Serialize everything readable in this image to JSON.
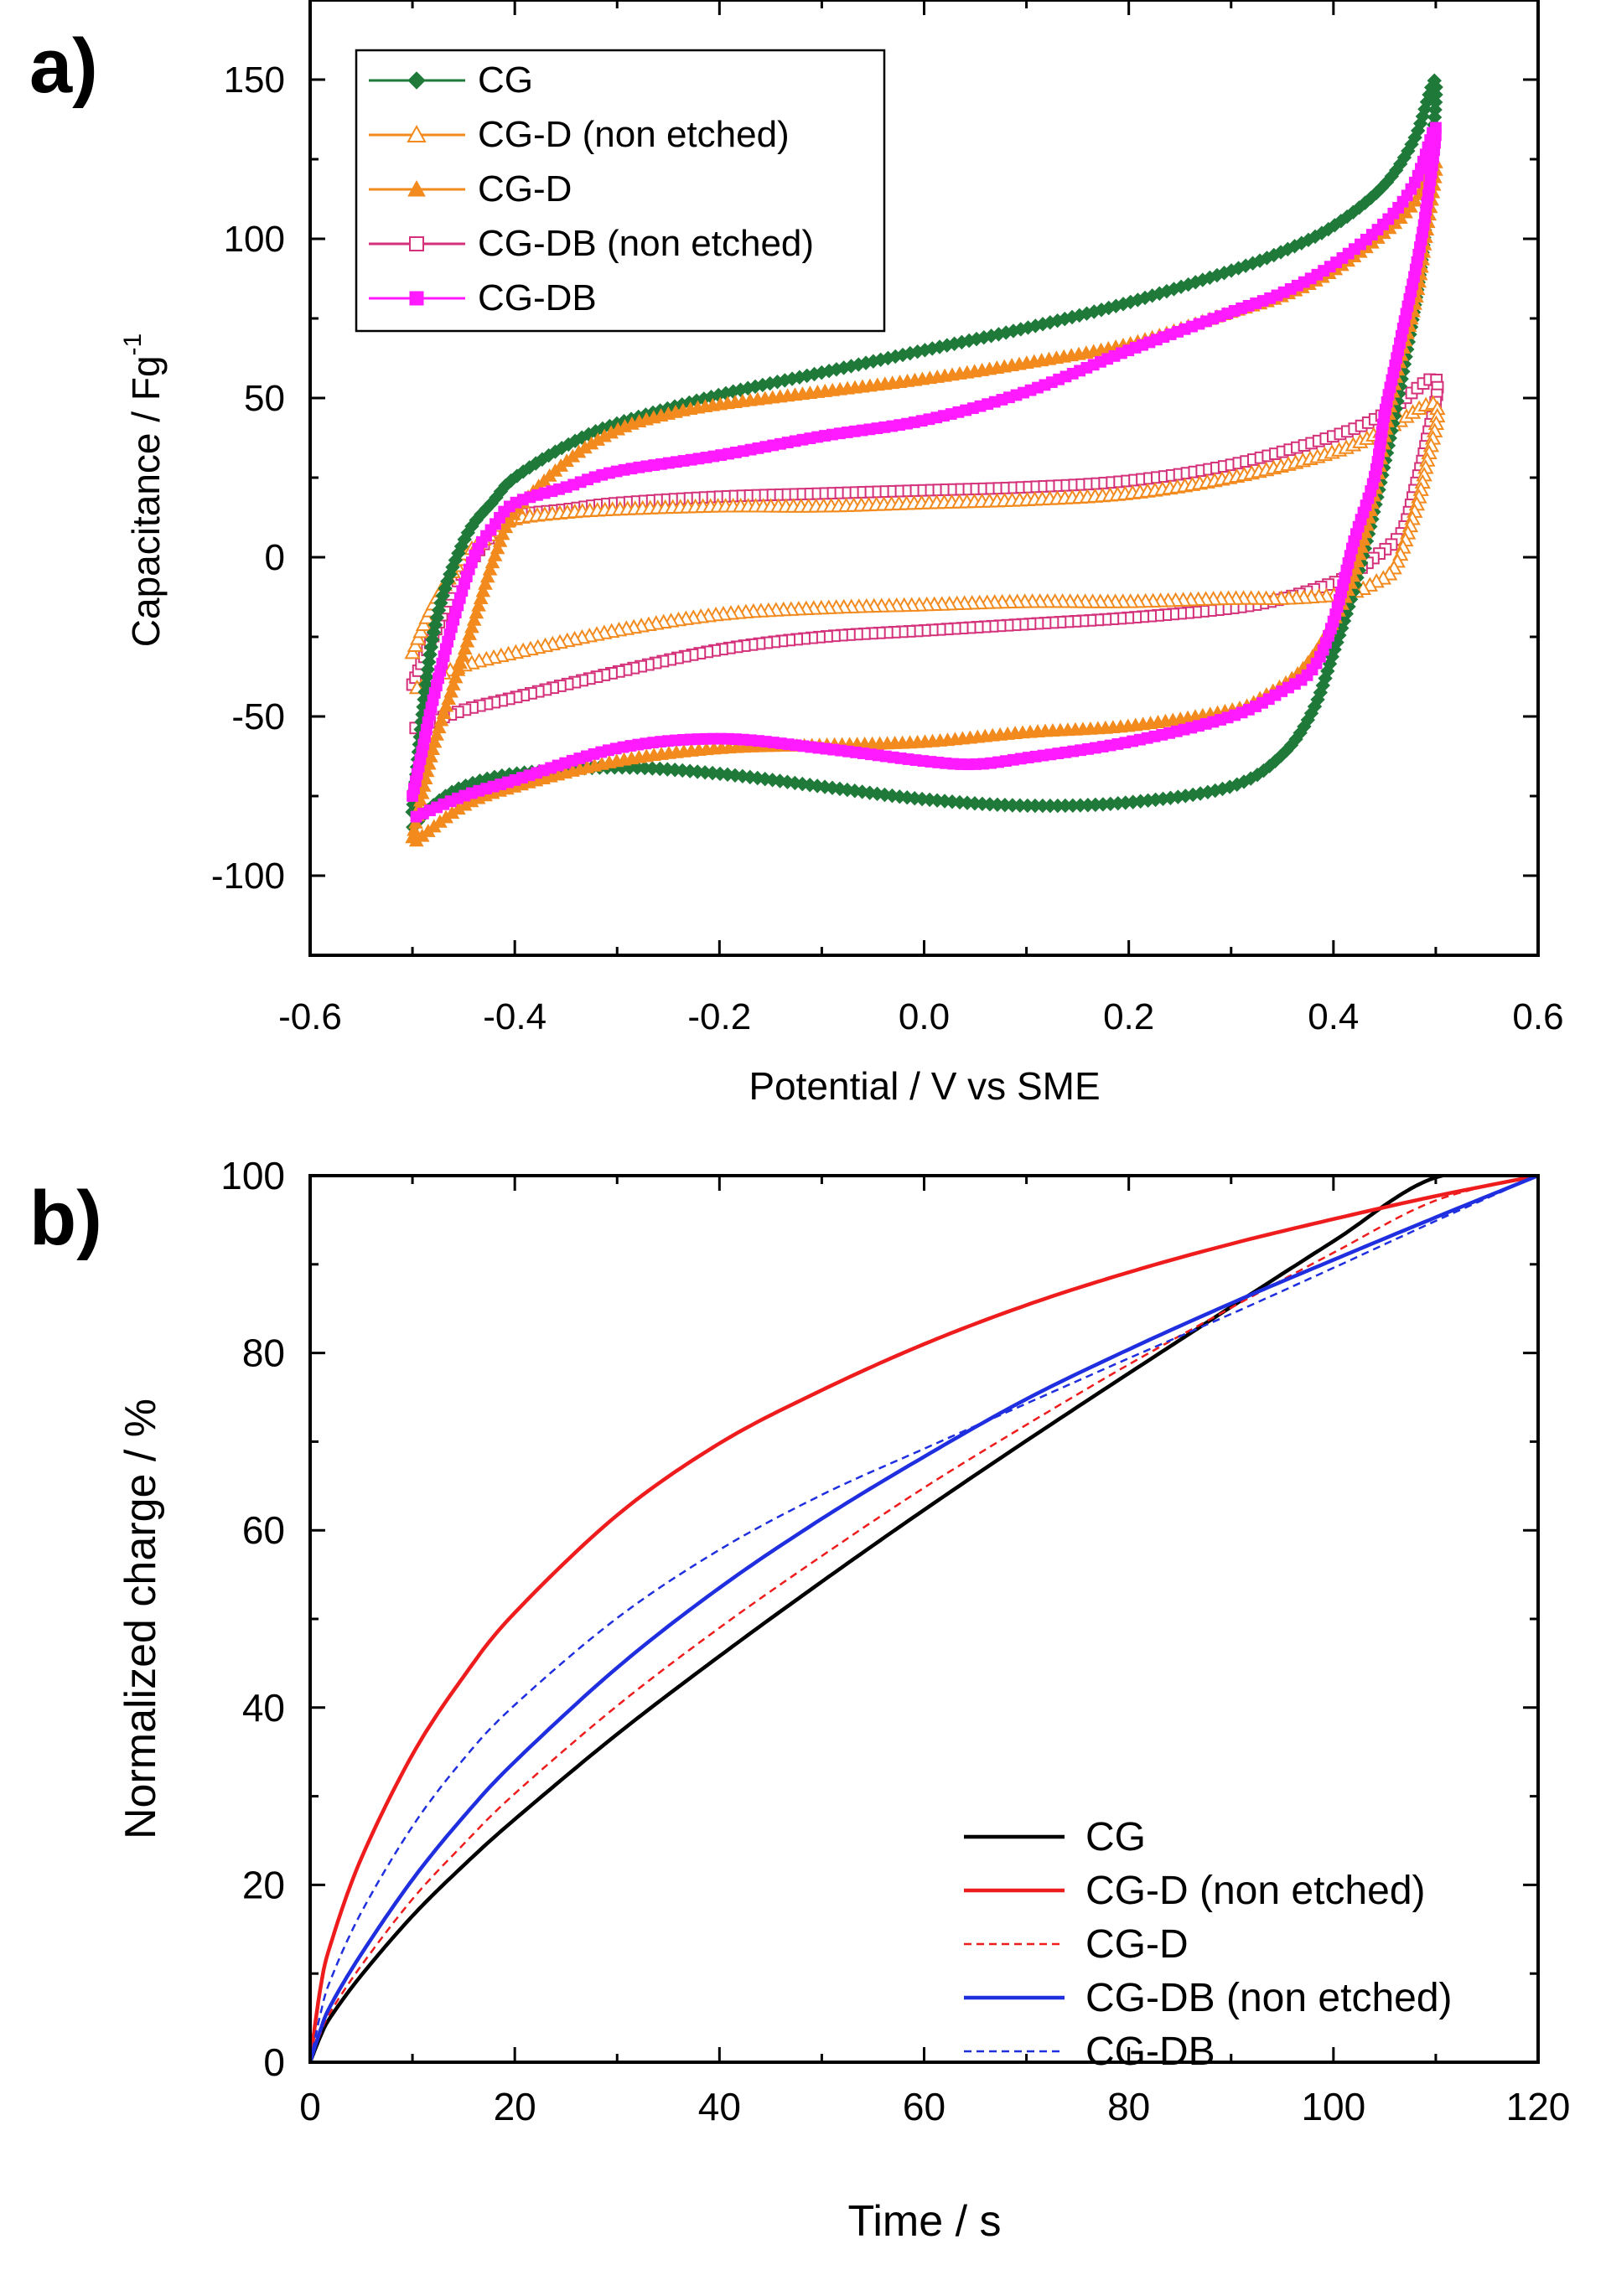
{
  "colors": {
    "CG_a": "#1f7a3a",
    "CGD_a": "#f28a1e",
    "CGDB_ne_a": "#d4317a",
    "CGDB_a": "#ff1aff",
    "CG_b": "#000000",
    "CGD_ne_b": "#ee1c1c",
    "CGD_b": "#ee1c1c",
    "CGDB_ne_b": "#1f2fe0",
    "CGDB_b": "#1f2fe0"
  },
  "chart_data": [
    {
      "type": "line",
      "panel_label": "a)",
      "title": "",
      "xlabel": "Potential / V vs SME",
      "ylabel_main": "Capacitance / Fg",
      "ylabel_sup": "-1",
      "xlim": [
        -0.6,
        0.6
      ],
      "ylim": [
        -125,
        175
      ],
      "xticks": [
        -0.6,
        -0.4,
        -0.2,
        0.0,
        0.2,
        0.4,
        0.6
      ],
      "xtick_labels": [
        "-0.6",
        "-0.4",
        "-0.2",
        "0.0",
        "0.2",
        "0.4",
        "0.6"
      ],
      "yticks": [
        -100,
        -50,
        0,
        50,
        100,
        150
      ],
      "ytick_labels": [
        "-100",
        "-50",
        "0",
        "50",
        "100",
        "150"
      ],
      "legend_position": "top-left",
      "series": [
        {
          "name": "CG",
          "color": "#1f7a3a",
          "marker": "diamond",
          "filled": true,
          "upper": [
            [
              -0.5,
              -80
            ],
            [
              -0.48,
              -25
            ],
            [
              -0.45,
              5
            ],
            [
              -0.42,
              18
            ],
            [
              -0.4,
              25
            ],
            [
              -0.35,
              35
            ],
            [
              -0.3,
              42
            ],
            [
              -0.2,
              51
            ],
            [
              -0.1,
              58
            ],
            [
              0.0,
              65
            ],
            [
              0.1,
              72
            ],
            [
              0.2,
              80
            ],
            [
              0.3,
              90
            ],
            [
              0.35,
              96
            ],
            [
              0.4,
              104
            ],
            [
              0.45,
              117
            ],
            [
              0.48,
              132
            ],
            [
              0.5,
              149
            ]
          ],
          "lower": [
            [
              0.5,
              128
            ],
            [
              0.49,
              105
            ],
            [
              0.48,
              80
            ],
            [
              0.46,
              45
            ],
            [
              0.44,
              15
            ],
            [
              0.42,
              -10
            ],
            [
              0.4,
              -30
            ],
            [
              0.38,
              -48
            ],
            [
              0.35,
              -62
            ],
            [
              0.3,
              -72
            ],
            [
              0.2,
              -77
            ],
            [
              0.1,
              -78
            ],
            [
              0.0,
              -76
            ],
            [
              -0.1,
              -72
            ],
            [
              -0.2,
              -68
            ],
            [
              -0.3,
              -66
            ],
            [
              -0.4,
              -68
            ],
            [
              -0.45,
              -72
            ],
            [
              -0.48,
              -78
            ],
            [
              -0.5,
              -85
            ]
          ]
        },
        {
          "name": "CG-D (non etched)",
          "color": "#f28a1e",
          "marker": "triangle",
          "filled": false,
          "upper": [
            [
              -0.5,
              -30
            ],
            [
              -0.48,
              -15
            ],
            [
              -0.45,
              0
            ],
            [
              -0.42,
              8
            ],
            [
              -0.4,
              12
            ],
            [
              -0.35,
              14
            ],
            [
              -0.3,
              15
            ],
            [
              -0.2,
              16
            ],
            [
              -0.1,
              16
            ],
            [
              0.0,
              17
            ],
            [
              0.1,
              18
            ],
            [
              0.2,
              20
            ],
            [
              0.3,
              25
            ],
            [
              0.4,
              33
            ],
            [
              0.45,
              40
            ],
            [
              0.5,
              48
            ]
          ],
          "lower": [
            [
              0.5,
              40
            ],
            [
              0.49,
              28
            ],
            [
              0.48,
              15
            ],
            [
              0.46,
              -3
            ],
            [
              0.44,
              -8
            ],
            [
              0.42,
              -11
            ],
            [
              0.4,
              -12
            ],
            [
              0.35,
              -13
            ],
            [
              0.3,
              -13
            ],
            [
              0.2,
              -14
            ],
            [
              0.1,
              -14
            ],
            [
              0.0,
              -15
            ],
            [
              -0.1,
              -16
            ],
            [
              -0.2,
              -18
            ],
            [
              -0.3,
              -23
            ],
            [
              -0.4,
              -30
            ],
            [
              -0.45,
              -34
            ],
            [
              -0.48,
              -38
            ],
            [
              -0.5,
              -42
            ]
          ]
        },
        {
          "name": "CG-D",
          "color": "#f28a1e",
          "marker": "triangle",
          "filled": true,
          "upper": [
            [
              -0.5,
              -88
            ],
            [
              -0.48,
              -60
            ],
            [
              -0.46,
              -40
            ],
            [
              -0.44,
              -20
            ],
            [
              -0.42,
              0
            ],
            [
              -0.4,
              14
            ],
            [
              -0.35,
              30
            ],
            [
              -0.3,
              40
            ],
            [
              -0.25,
              45
            ],
            [
              -0.2,
              48
            ],
            [
              -0.1,
              52
            ],
            [
              0.0,
              56
            ],
            [
              0.1,
              61
            ],
            [
              0.2,
              67
            ],
            [
              0.3,
              77
            ],
            [
              0.35,
              82
            ],
            [
              0.4,
              90
            ],
            [
              0.45,
              102
            ],
            [
              0.48,
              112
            ],
            [
              0.5,
              124
            ]
          ],
          "lower": [
            [
              0.5,
              115
            ],
            [
              0.49,
              100
            ],
            [
              0.48,
              80
            ],
            [
              0.46,
              55
            ],
            [
              0.44,
              20
            ],
            [
              0.42,
              -5
            ],
            [
              0.4,
              -20
            ],
            [
              0.37,
              -35
            ],
            [
              0.33,
              -44
            ],
            [
              0.3,
              -48
            ],
            [
              0.2,
              -53
            ],
            [
              0.1,
              -55
            ],
            [
              0.0,
              -58
            ],
            [
              -0.1,
              -59
            ],
            [
              -0.2,
              -60
            ],
            [
              -0.3,
              -64
            ],
            [
              -0.4,
              -72
            ],
            [
              -0.45,
              -78
            ],
            [
              -0.5,
              -90
            ]
          ]
        },
        {
          "name": "CG-DB (non etched)",
          "color": "#d4317a",
          "marker": "square",
          "filled": false,
          "upper": [
            [
              -0.5,
              -40
            ],
            [
              -0.48,
              -25
            ],
            [
              -0.46,
              -10
            ],
            [
              -0.44,
              0
            ],
            [
              -0.42,
              8
            ],
            [
              -0.4,
              13
            ],
            [
              -0.35,
              15
            ],
            [
              -0.3,
              17
            ],
            [
              -0.2,
              19
            ],
            [
              -0.1,
              20
            ],
            [
              0.0,
              21
            ],
            [
              0.1,
              22
            ],
            [
              0.2,
              24
            ],
            [
              0.3,
              29
            ],
            [
              0.4,
              38
            ],
            [
              0.45,
              45
            ],
            [
              0.5,
              56
            ]
          ],
          "lower": [
            [
              0.5,
              48
            ],
            [
              0.49,
              35
            ],
            [
              0.48,
              22
            ],
            [
              0.47,
              10
            ],
            [
              0.46,
              5
            ],
            [
              0.44,
              0
            ],
            [
              0.42,
              -5
            ],
            [
              0.4,
              -8
            ],
            [
              0.35,
              -13
            ],
            [
              0.3,
              -16
            ],
            [
              0.2,
              -19
            ],
            [
              0.1,
              -21
            ],
            [
              0.0,
              -23
            ],
            [
              -0.1,
              -25
            ],
            [
              -0.2,
              -29
            ],
            [
              -0.3,
              -36
            ],
            [
              -0.4,
              -44
            ],
            [
              -0.45,
              -48
            ],
            [
              -0.5,
              -54
            ]
          ]
        },
        {
          "name": "CG-DB",
          "color": "#ff1aff",
          "marker": "square",
          "filled": true,
          "upper": [
            [
              -0.5,
              -75
            ],
            [
              -0.49,
              -60
            ],
            [
              -0.48,
              -45
            ],
            [
              -0.46,
              -20
            ],
            [
              -0.44,
              0
            ],
            [
              -0.42,
              10
            ],
            [
              -0.4,
              17
            ],
            [
              -0.35,
              22
            ],
            [
              -0.3,
              27
            ],
            [
              -0.2,
              32
            ],
            [
              -0.1,
              38
            ],
            [
              0.0,
              43
            ],
            [
              0.1,
              52
            ],
            [
              0.2,
              65
            ],
            [
              0.3,
              77
            ],
            [
              0.35,
              83
            ],
            [
              0.4,
              92
            ],
            [
              0.45,
              105
            ],
            [
              0.48,
              118
            ],
            [
              0.5,
              135
            ]
          ],
          "lower": [
            [
              0.5,
              128
            ],
            [
              0.49,
              108
            ],
            [
              0.48,
              90
            ],
            [
              0.47,
              75
            ],
            [
              0.46,
              60
            ],
            [
              0.45,
              45
            ],
            [
              0.44,
              25
            ],
            [
              0.42,
              5
            ],
            [
              0.4,
              -20
            ],
            [
              0.38,
              -35
            ],
            [
              0.35,
              -42
            ],
            [
              0.3,
              -50
            ],
            [
              0.2,
              -58
            ],
            [
              0.1,
              -63
            ],
            [
              0.05,
              -65
            ],
            [
              0.0,
              -64
            ],
            [
              -0.1,
              -60
            ],
            [
              -0.2,
              -57
            ],
            [
              -0.3,
              -60
            ],
            [
              -0.4,
              -70
            ],
            [
              -0.45,
              -75
            ],
            [
              -0.5,
              -82
            ]
          ]
        }
      ]
    },
    {
      "type": "line",
      "panel_label": "b)",
      "title": "",
      "xlabel": "Time / s",
      "ylabel": "Normalized charge / %",
      "xlim": [
        0,
        120
      ],
      "ylim": [
        0,
        100
      ],
      "xticks": [
        0,
        20,
        40,
        60,
        80,
        100,
        120
      ],
      "xtick_labels": [
        "0",
        "20",
        "40",
        "60",
        "80",
        "100",
        "120"
      ],
      "yticks": [
        0,
        20,
        40,
        60,
        80,
        100
      ],
      "ytick_labels": [
        "0",
        "20",
        "40",
        "60",
        "80",
        "100"
      ],
      "legend_position": "bottom-right",
      "series": [
        {
          "name": "CG",
          "color": "#000000",
          "style": "solid",
          "x": [
            0,
            1,
            2,
            5,
            10,
            15,
            20,
            30,
            40,
            50,
            60,
            70,
            80,
            90,
            100,
            110,
            120
          ],
          "y": [
            0,
            2.9,
            5.1,
            9.8,
            16.5,
            22.2,
            27.4,
            37.0,
            45.8,
            54.2,
            62.3,
            70.1,
            77.7,
            85.2,
            92.6,
            99.8,
            100
          ]
        },
        {
          "name": "CG-D (non etched)",
          "color": "#ee1c1c",
          "style": "solid",
          "x": [
            0,
            1,
            2,
            5,
            10,
            15,
            20,
            30,
            40,
            50,
            60,
            70,
            80,
            90,
            100,
            110,
            120
          ],
          "y": [
            0,
            8.3,
            13.3,
            23.0,
            34.7,
            43.5,
            50.7,
            61.7,
            69.8,
            75.8,
            81.0,
            85.4,
            89.1,
            92.3,
            95.1,
            97.7,
            100
          ]
        },
        {
          "name": "CG-D",
          "color": "#ee1c1c",
          "style": "dashed",
          "x": [
            0,
            1,
            2,
            5,
            10,
            15,
            20,
            30,
            40,
            50,
            60,
            70,
            80,
            90,
            100,
            110,
            120
          ],
          "y": [
            0,
            3.2,
            5.7,
            10.9,
            18.4,
            24.6,
            30.3,
            40.2,
            49.0,
            57.1,
            64.8,
            71.9,
            78.7,
            85.1,
            91.3,
            97.2,
            100
          ]
        },
        {
          "name": "CG-DB (non etched)",
          "color": "#1f2fe0",
          "style": "solid",
          "x": [
            0,
            1,
            2,
            5,
            10,
            15,
            20,
            30,
            40,
            50,
            60,
            70,
            80,
            90,
            100,
            110,
            120
          ],
          "y": [
            0,
            3.6,
            6.4,
            12.2,
            20.6,
            27.7,
            33.9,
            44.5,
            53.5,
            61.3,
            68.3,
            74.8,
            80.4,
            85.6,
            90.5,
            95.3,
            100
          ]
        },
        {
          "name": "CG-DB",
          "color": "#1f2fe0",
          "style": "dashed",
          "x": [
            0,
            1,
            2,
            5,
            10,
            15,
            20,
            30,
            40,
            50,
            60,
            70,
            80,
            90,
            100,
            110,
            120
          ],
          "y": [
            0,
            5.4,
            9.3,
            16.9,
            26.6,
            34.2,
            40.3,
            50.1,
            57.8,
            64.0,
            69.2,
            74.3,
            79.4,
            84.4,
            89.6,
            94.9,
            100
          ]
        }
      ]
    }
  ]
}
